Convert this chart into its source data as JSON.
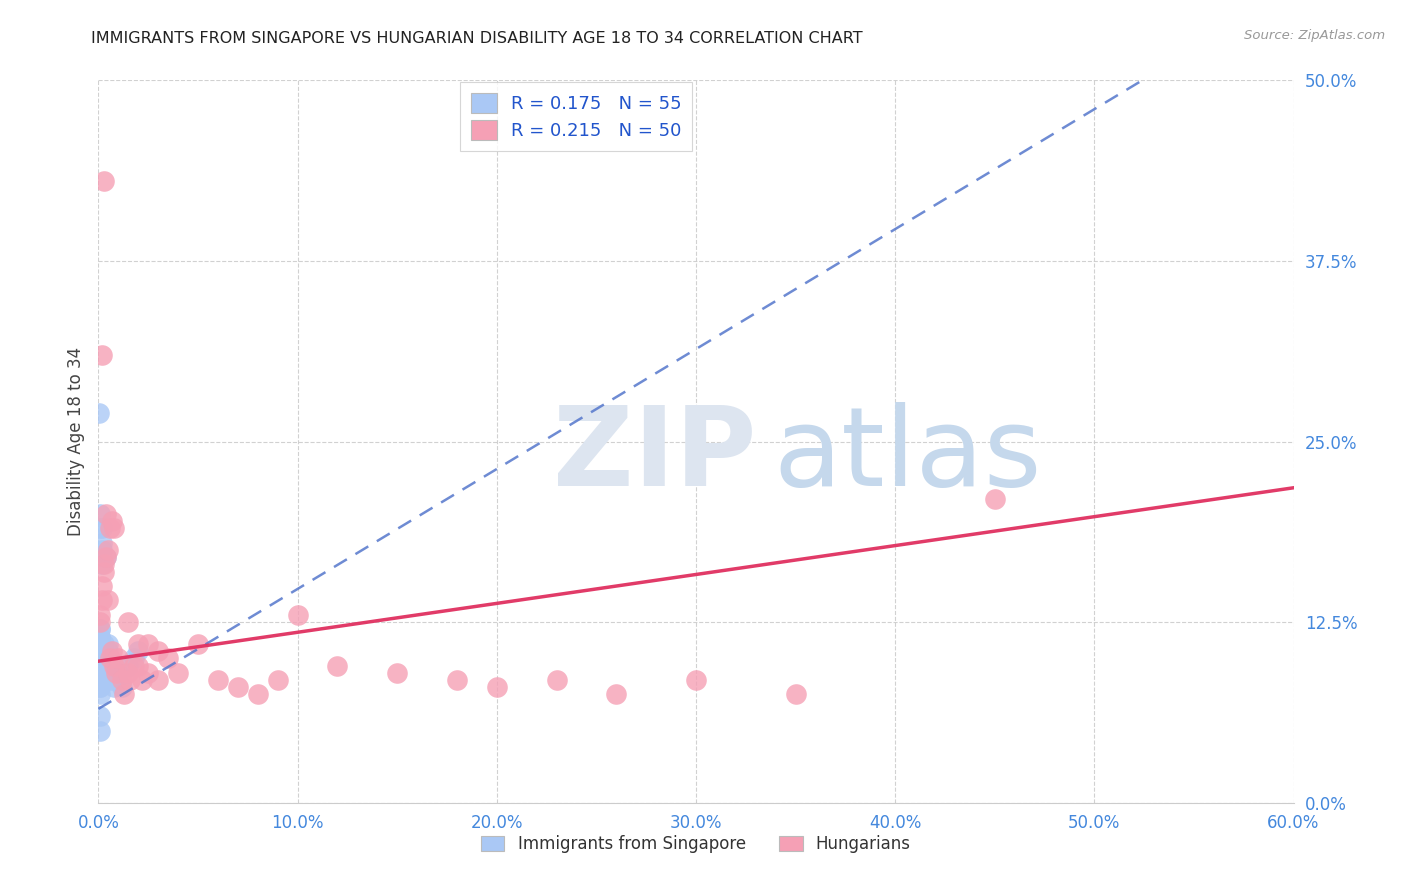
{
  "title": "IMMIGRANTS FROM SINGAPORE VS HUNGARIAN DISABILITY AGE 18 TO 34 CORRELATION CHART",
  "source": "Source: ZipAtlas.com",
  "xlim": [
    0.0,
    0.6
  ],
  "ylim": [
    0.0,
    0.5
  ],
  "xtick_vals": [
    0.0,
    0.1,
    0.2,
    0.3,
    0.4,
    0.5,
    0.6
  ],
  "ytick_vals": [
    0.0,
    0.125,
    0.25,
    0.375,
    0.5
  ],
  "legend1_label": "R = 0.175   N = 55",
  "legend2_label": "R = 0.215   N = 50",
  "legend_xlabel": "Immigrants from Singapore",
  "legend_ylabel": "Hungarians",
  "singapore_color": "#aac8f5",
  "hungarian_color": "#f5a0b5",
  "singapore_line_color": "#5577cc",
  "hungarian_line_color": "#e03060",
  "sg_trend_slope": 0.83,
  "sg_trend_intercept": 0.065,
  "hu_trend_slope": 0.2,
  "hu_trend_intercept": 0.098,
  "sg_x": [
    0.0003,
    0.0003,
    0.0004,
    0.0004,
    0.0005,
    0.0005,
    0.0005,
    0.0006,
    0.0006,
    0.0007,
    0.0007,
    0.0008,
    0.0008,
    0.0008,
    0.0009,
    0.0009,
    0.001,
    0.001,
    0.001,
    0.001,
    0.001,
    0.001,
    0.001,
    0.001,
    0.001,
    0.001,
    0.0012,
    0.0013,
    0.0015,
    0.0015,
    0.0018,
    0.002,
    0.002,
    0.002,
    0.0025,
    0.003,
    0.003,
    0.004,
    0.004,
    0.005,
    0.005,
    0.006,
    0.007,
    0.008,
    0.009,
    0.01,
    0.012,
    0.015,
    0.018,
    0.02,
    0.0005,
    0.0006,
    0.0007,
    0.001,
    0.001
  ],
  "sg_y": [
    0.085,
    0.09,
    0.095,
    0.1,
    0.105,
    0.11,
    0.115,
    0.12,
    0.09,
    0.095,
    0.1,
    0.105,
    0.11,
    0.115,
    0.08,
    0.085,
    0.09,
    0.095,
    0.1,
    0.105,
    0.11,
    0.115,
    0.12,
    0.085,
    0.08,
    0.075,
    0.1,
    0.105,
    0.11,
    0.095,
    0.175,
    0.165,
    0.18,
    0.19,
    0.1,
    0.105,
    0.11,
    0.095,
    0.17,
    0.105,
    0.11,
    0.09,
    0.085,
    0.08,
    0.085,
    0.09,
    0.08,
    0.095,
    0.1,
    0.105,
    0.27,
    0.19,
    0.2,
    0.05,
    0.06
  ],
  "hu_x": [
    0.001,
    0.001,
    0.002,
    0.002,
    0.003,
    0.003,
    0.004,
    0.005,
    0.006,
    0.007,
    0.008,
    0.009,
    0.01,
    0.012,
    0.013,
    0.015,
    0.016,
    0.018,
    0.02,
    0.022,
    0.025,
    0.025,
    0.03,
    0.035,
    0.04,
    0.05,
    0.06,
    0.07,
    0.08,
    0.09,
    0.1,
    0.12,
    0.15,
    0.18,
    0.2,
    0.23,
    0.26,
    0.3,
    0.35,
    0.45,
    0.002,
    0.003,
    0.004,
    0.005,
    0.006,
    0.007,
    0.008,
    0.015,
    0.02,
    0.03
  ],
  "hu_y": [
    0.125,
    0.13,
    0.14,
    0.15,
    0.16,
    0.165,
    0.17,
    0.175,
    0.1,
    0.105,
    0.095,
    0.09,
    0.1,
    0.085,
    0.075,
    0.09,
    0.085,
    0.095,
    0.11,
    0.085,
    0.11,
    0.09,
    0.105,
    0.1,
    0.09,
    0.11,
    0.085,
    0.08,
    0.075,
    0.085,
    0.13,
    0.095,
    0.09,
    0.085,
    0.08,
    0.085,
    0.075,
    0.085,
    0.075,
    0.21,
    0.31,
    0.43,
    0.2,
    0.14,
    0.19,
    0.195,
    0.19,
    0.125,
    0.095,
    0.085
  ]
}
